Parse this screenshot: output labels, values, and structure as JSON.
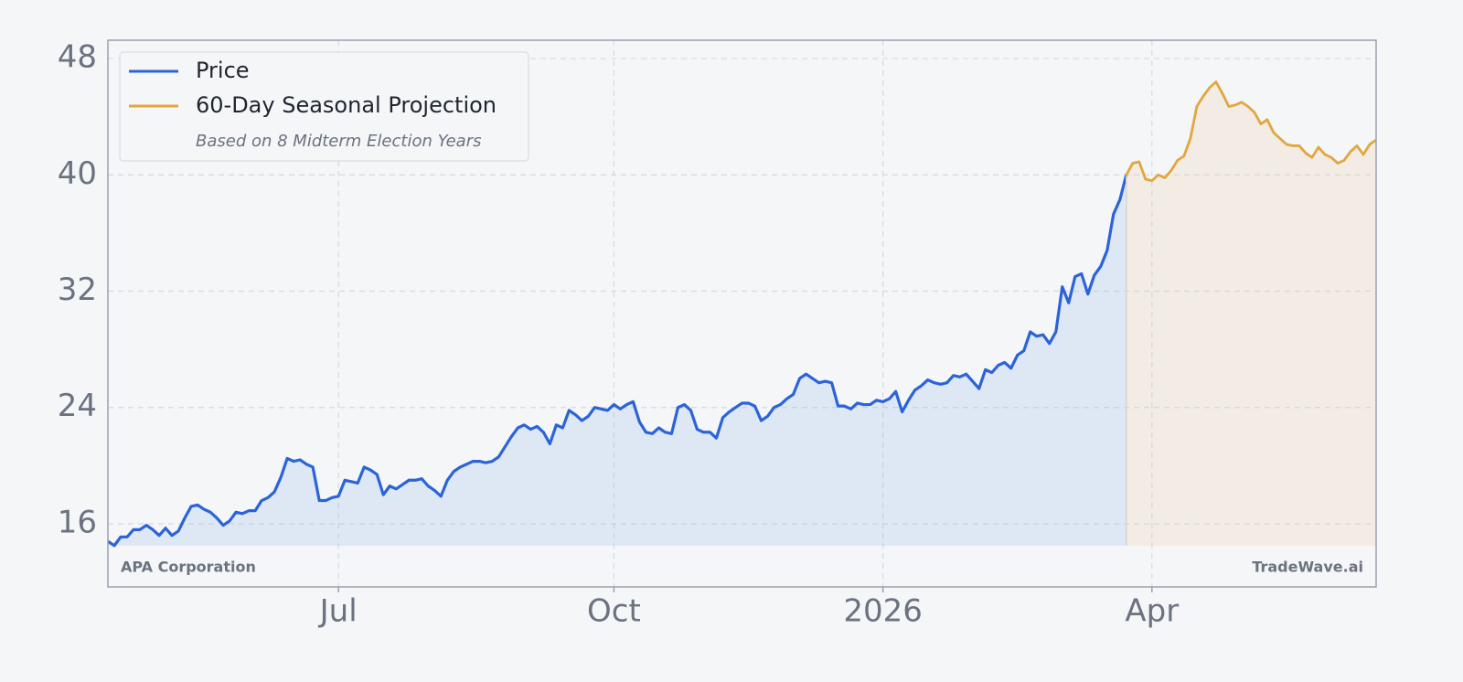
{
  "chart_data": {
    "type": "line",
    "categories": [
      null,
      null,
      null,
      null,
      null,
      null,
      null,
      null,
      null,
      null,
      null,
      null,
      null,
      null,
      null,
      null,
      null,
      null,
      null,
      null,
      null,
      null,
      null,
      null,
      null,
      null,
      null,
      null,
      null,
      null,
      null,
      null,
      null,
      null,
      null,
      null,
      "Jul",
      null,
      null,
      null,
      null,
      null,
      null,
      null,
      null,
      null,
      null,
      null,
      null,
      null,
      null,
      null,
      null,
      null,
      null,
      null,
      null,
      null,
      null,
      null,
      null,
      null,
      null,
      null,
      null,
      null,
      null,
      null,
      null,
      null,
      null,
      null,
      null,
      null,
      null,
      null,
      null,
      null,
      null,
      "Oct",
      null,
      null,
      null,
      null,
      null,
      null,
      null,
      null,
      null,
      null,
      null,
      null,
      null,
      null,
      null,
      null,
      null,
      null,
      null,
      null,
      null,
      null,
      null,
      null,
      null,
      null,
      null,
      null,
      null,
      null,
      null,
      null,
      null,
      null,
      null,
      null,
      null,
      null,
      null,
      null,
      null,
      "2026",
      null,
      null,
      null,
      null,
      null,
      null,
      null,
      null,
      null,
      null,
      null,
      null,
      null,
      null,
      null,
      null,
      null,
      null,
      null,
      null,
      null,
      null,
      null,
      null,
      null,
      null,
      null,
      null,
      null,
      null,
      null,
      null,
      null,
      null,
      null,
      null,
      null,
      null,
      null,
      null,
      null,
      "Apr",
      null,
      null,
      null,
      null,
      null,
      null,
      null,
      null,
      null,
      null,
      null,
      null,
      null,
      null,
      null,
      null,
      null,
      null,
      null,
      null,
      null,
      null,
      null,
      null,
      null,
      null,
      null,
      null,
      null,
      null,
      null,
      null,
      null,
      null,
      null
    ],
    "series": [
      {
        "name": "Price",
        "color": "#2b63d9",
        "fill": "rgba(120,170,225,0.18)",
        "values": [
          14.8,
          14.5,
          15.1,
          15.1,
          15.6,
          15.6,
          15.9,
          15.6,
          15.2,
          15.7,
          15.2,
          15.5,
          16.4,
          17.2,
          17.3,
          17.0,
          16.8,
          16.4,
          15.9,
          16.2,
          16.8,
          16.7,
          16.9,
          16.9,
          17.6,
          17.8,
          18.2,
          19.2,
          20.5,
          20.3,
          20.4,
          20.1,
          19.9,
          17.6,
          17.6,
          17.8,
          17.9,
          19.0,
          18.9,
          18.8,
          19.9,
          19.7,
          19.4,
          18.0,
          18.6,
          18.4,
          18.7,
          19.0,
          19.0,
          19.1,
          18.6,
          18.3,
          17.9,
          19.0,
          19.6,
          19.9,
          20.1,
          20.3,
          20.3,
          20.2,
          20.3,
          20.6,
          21.3,
          22.0,
          22.6,
          22.8,
          22.5,
          22.7,
          22.3,
          21.5,
          22.8,
          22.6,
          23.8,
          23.5,
          23.1,
          23.4,
          24.0,
          23.9,
          23.8,
          24.2,
          23.9,
          24.2,
          24.4,
          23.0,
          22.3,
          22.2,
          22.6,
          22.3,
          22.2,
          24.0,
          24.2,
          23.8,
          22.5,
          22.3,
          22.3,
          21.9,
          23.3,
          23.7,
          24.0,
          24.3,
          24.3,
          24.1,
          23.1,
          23.4,
          24.0,
          24.2,
          24.6,
          24.9,
          26.0,
          26.3,
          26.0,
          25.7,
          25.8,
          25.7,
          24.1,
          24.1,
          23.9,
          24.3,
          24.2,
          24.2,
          24.5,
          24.4,
          24.6,
          25.1,
          23.7,
          24.5,
          25.2,
          25.5,
          25.9,
          25.7,
          25.6,
          25.7,
          26.2,
          26.1,
          26.3,
          25.8,
          25.3,
          26.6,
          26.4,
          26.9,
          27.1,
          26.7,
          27.6,
          27.9,
          29.2,
          28.9,
          29.0,
          28.4,
          29.2,
          32.3,
          31.2,
          33.0,
          33.2,
          31.8,
          33.1,
          33.7,
          34.8,
          37.3,
          38.3,
          40.0,
          null,
          null,
          null,
          null,
          null,
          null,
          null,
          null,
          null,
          null,
          null,
          null,
          null,
          null,
          null,
          null,
          null,
          null,
          null,
          null,
          null,
          null,
          null,
          null,
          null,
          null,
          null,
          null,
          null,
          null,
          null,
          null,
          null,
          null,
          null,
          null,
          null,
          null,
          null
        ]
      },
      {
        "name": "60-Day Seasonal Projection",
        "color": "#e3a63f",
        "fill": "rgba(235,200,160,0.22)",
        "values": [
          null,
          null,
          null,
          null,
          null,
          null,
          null,
          null,
          null,
          null,
          null,
          null,
          null,
          null,
          null,
          null,
          null,
          null,
          null,
          null,
          null,
          null,
          null,
          null,
          null,
          null,
          null,
          null,
          null,
          null,
          null,
          null,
          null,
          null,
          null,
          null,
          null,
          null,
          null,
          null,
          null,
          null,
          null,
          null,
          null,
          null,
          null,
          null,
          null,
          null,
          null,
          null,
          null,
          null,
          null,
          null,
          null,
          null,
          null,
          null,
          null,
          null,
          null,
          null,
          null,
          null,
          null,
          null,
          null,
          null,
          null,
          null,
          null,
          null,
          null,
          null,
          null,
          null,
          null,
          null,
          null,
          null,
          null,
          null,
          null,
          null,
          null,
          null,
          null,
          null,
          null,
          null,
          null,
          null,
          null,
          null,
          null,
          null,
          null,
          null,
          null,
          null,
          null,
          null,
          null,
          null,
          null,
          null,
          null,
          null,
          null,
          null,
          null,
          null,
          null,
          null,
          null,
          null,
          null,
          null,
          null,
          null,
          null,
          null,
          null,
          null,
          null,
          null,
          null,
          null,
          null,
          null,
          null,
          null,
          null,
          null,
          null,
          null,
          null,
          null,
          null,
          null,
          null,
          null,
          null,
          null,
          null,
          null,
          null,
          null,
          null,
          null,
          null,
          null,
          null,
          null,
          null,
          null,
          null,
          40.0,
          40.8,
          40.9,
          39.7,
          39.6,
          40.0,
          39.8,
          40.3,
          41.0,
          41.3,
          42.5,
          44.7,
          45.4,
          46.0,
          46.4,
          45.6,
          44.7,
          44.8,
          45.0,
          44.7,
          44.3,
          43.5,
          43.8,
          42.9,
          42.5,
          42.1,
          42.0,
          42.0,
          41.5,
          41.2,
          41.9,
          41.4,
          41.2,
          40.8,
          41.0,
          41.6,
          42.0,
          41.4,
          42.1,
          42.4
        ]
      }
    ],
    "legend_note": "Based on 8 Midterm Election Years",
    "legend": "upper left",
    "annotations": [
      {
        "text": "APA Corporation",
        "corner": "lower left"
      },
      {
        "text": "TradeWave.ai",
        "corner": "lower right"
      }
    ],
    "ylim": [
      11.66,
      49.26
    ],
    "yticks": [
      16,
      24,
      32,
      40,
      48
    ],
    "grid": true
  }
}
